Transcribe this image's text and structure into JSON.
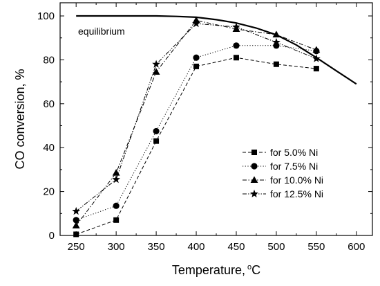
{
  "chart_data": {
    "type": "line",
    "xlabel": "Temperature,",
    "xlabel_unit_sup": "o",
    "xlabel_unit": "C",
    "ylabel": "CO conversion, %",
    "xlim": [
      230,
      620
    ],
    "ylim": [
      0,
      106
    ],
    "xticks": [
      250,
      300,
      350,
      400,
      450,
      500,
      550,
      600
    ],
    "yticks": [
      0,
      20,
      40,
      60,
      80,
      100
    ],
    "grid": false,
    "legend_position": "center-right",
    "annotation": "equilibrium",
    "equilibrium_curve": {
      "x": [
        250,
        300,
        350,
        375,
        400,
        425,
        450,
        475,
        500,
        525,
        550,
        575,
        600
      ],
      "y": [
        100,
        100,
        100,
        99.8,
        99.4,
        98.3,
        96.8,
        94.5,
        91.4,
        86.8,
        81.0,
        75.0,
        69.0
      ]
    },
    "series": [
      {
        "name": "for 5.0% Ni",
        "marker": "square",
        "dash": "dashed",
        "x": [
          250,
          300,
          350,
          400,
          450,
          500,
          550
        ],
        "y": [
          0.5,
          7,
          43,
          77,
          81,
          78,
          76
        ]
      },
      {
        "name": "for 7.5% Ni",
        "marker": "circle",
        "dash": "dotted",
        "x": [
          250,
          300,
          350,
          400,
          450,
          500,
          550
        ],
        "y": [
          7,
          13.5,
          47.5,
          81,
          86.5,
          86.5,
          84
        ]
      },
      {
        "name": "for 10.0% Ni",
        "marker": "triangle",
        "dash": "dashdot",
        "x": [
          250,
          300,
          350,
          400,
          450,
          500,
          550
        ],
        "y": [
          4.5,
          28.5,
          74.5,
          98,
          94,
          91.5,
          84.5
        ]
      },
      {
        "name": "for 12.5% Ni",
        "marker": "star",
        "dash": "dashdotdot",
        "x": [
          250,
          300,
          350,
          400,
          450,
          500,
          550
        ],
        "y": [
          11,
          25.5,
          78,
          96.5,
          95,
          88,
          80.5
        ]
      }
    ]
  }
}
